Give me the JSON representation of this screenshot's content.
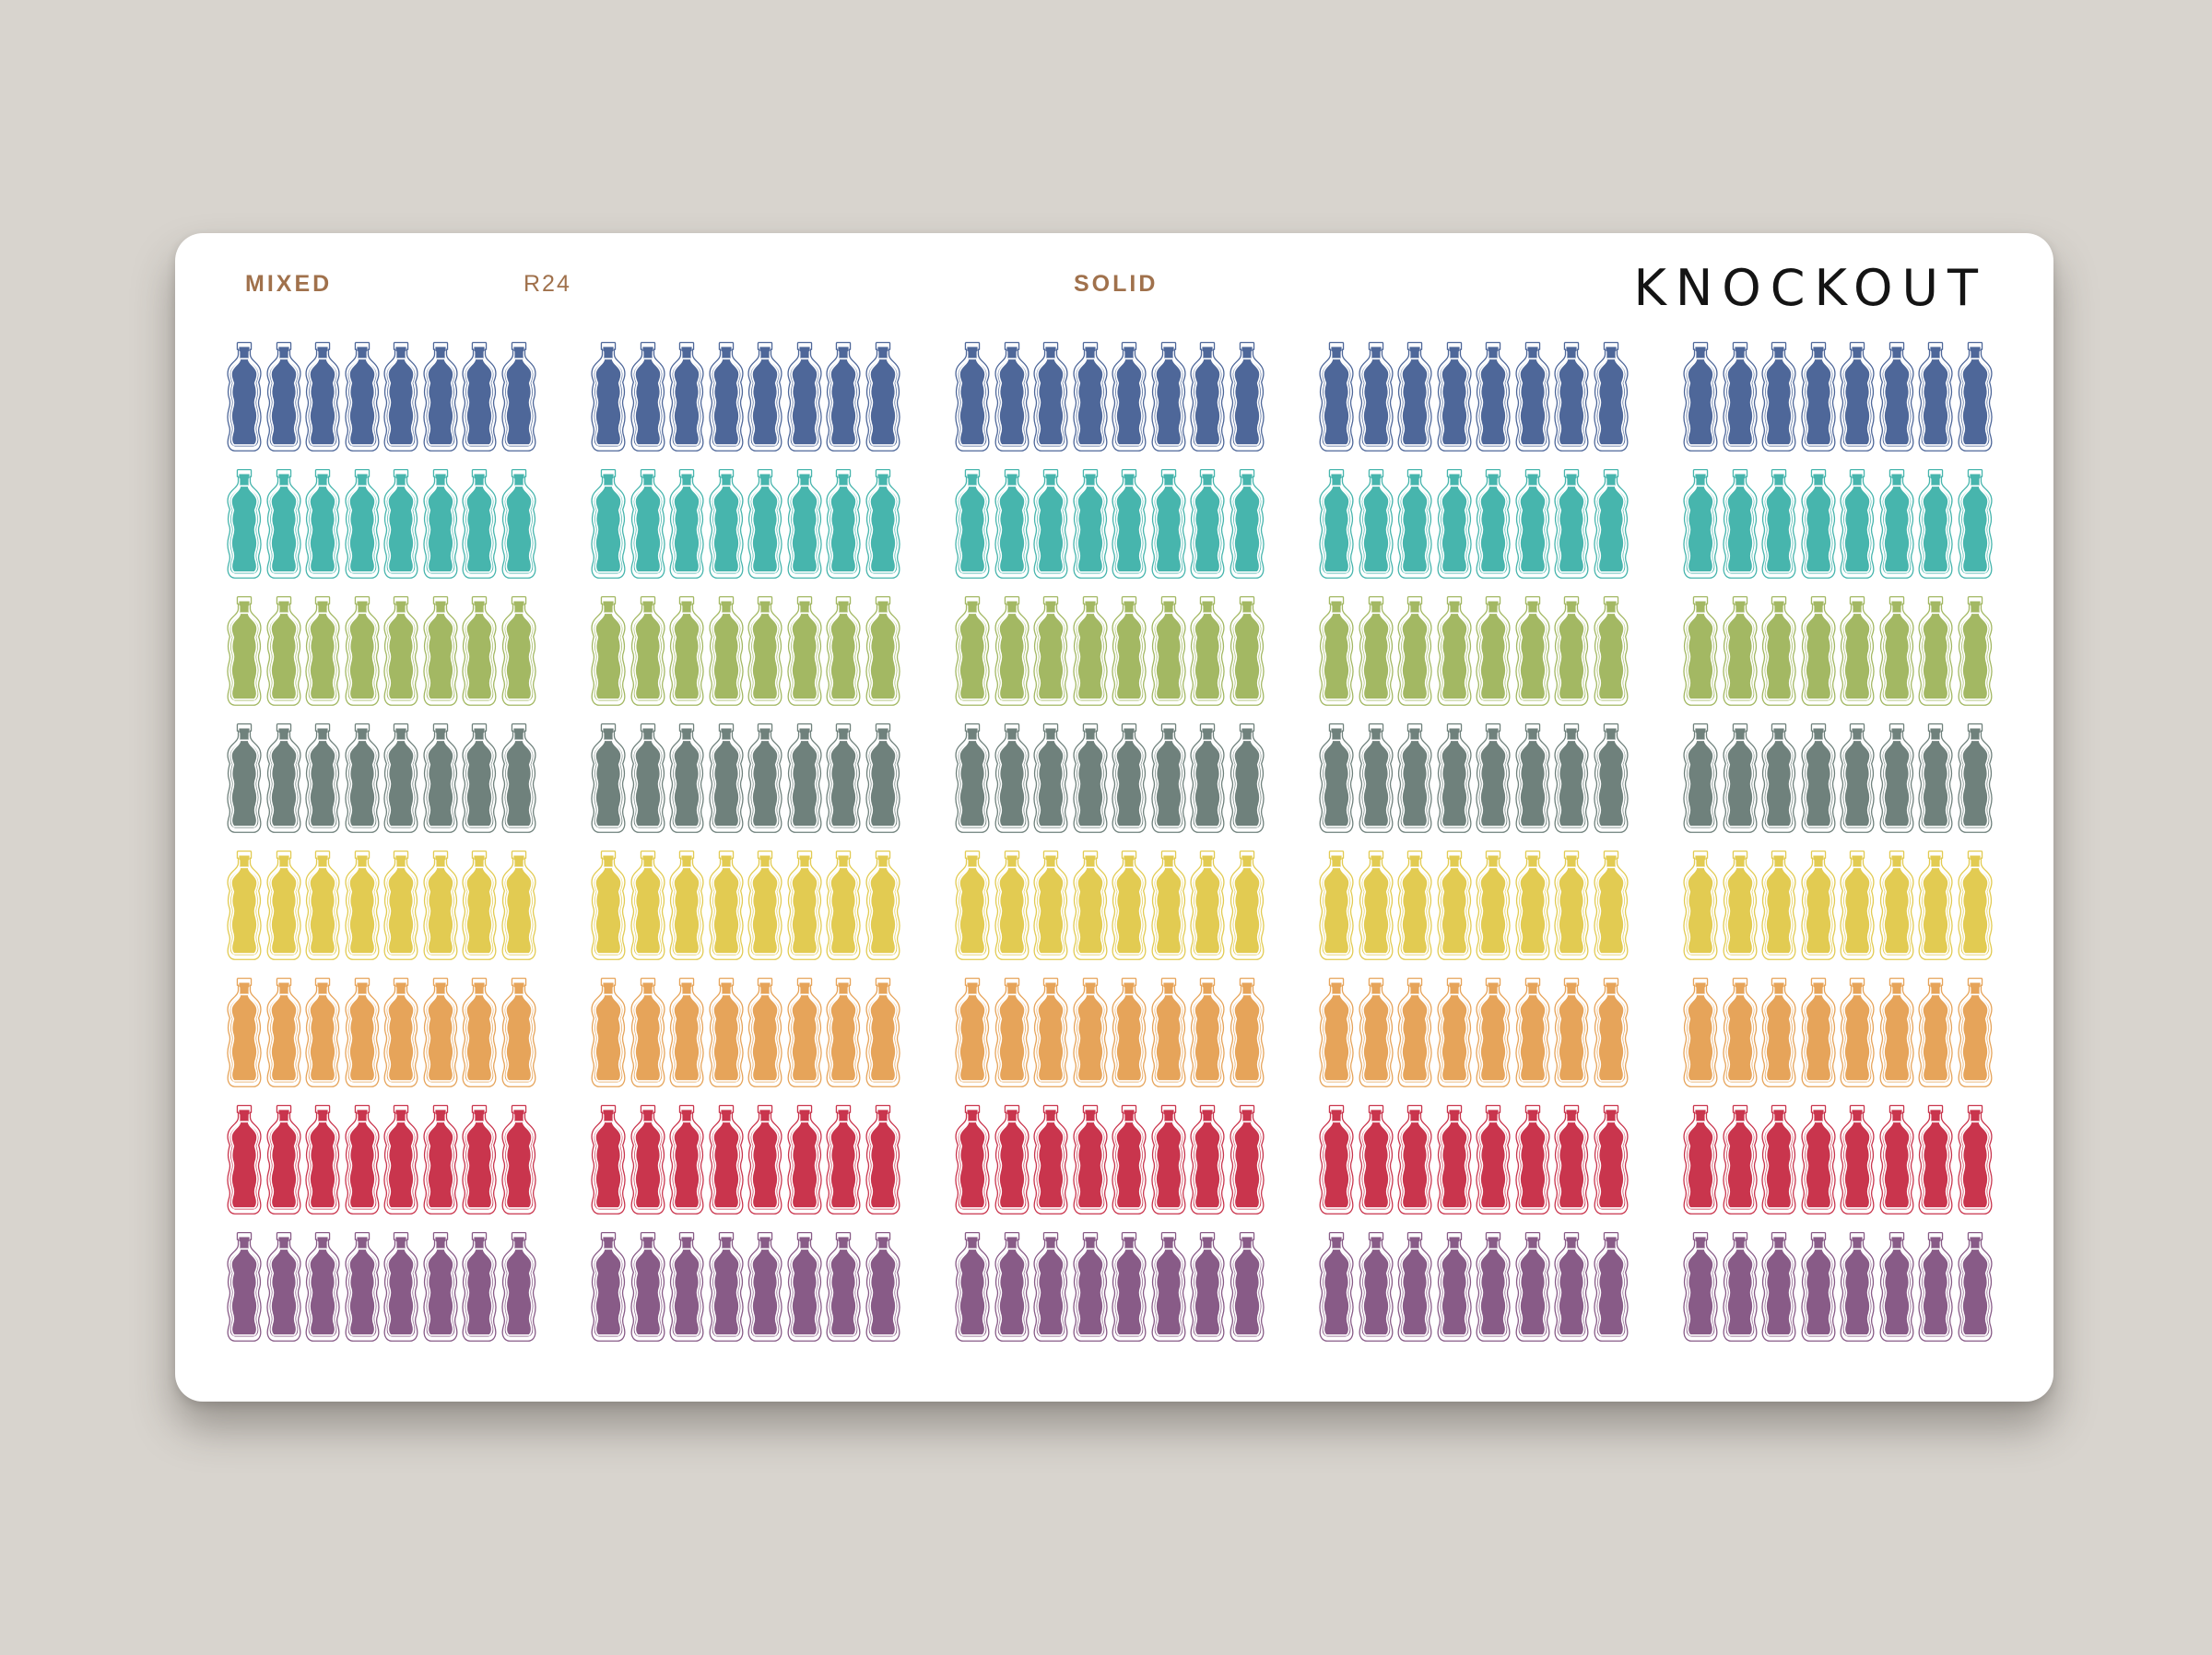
{
  "sheet": {
    "labels": {
      "mixed": "MIXED",
      "code": "R24",
      "solid": "SOLID"
    },
    "brand": "KNOCKOUT"
  },
  "stickers": {
    "icon": "water-bottle-icon",
    "blocks": 5,
    "bottles_per_strip": 8,
    "rows": [
      {
        "name": "blue",
        "color": "#4e6799"
      },
      {
        "name": "teal",
        "color": "#47b5ad"
      },
      {
        "name": "green",
        "color": "#a3b863"
      },
      {
        "name": "gray",
        "color": "#6f817c"
      },
      {
        "name": "yellow",
        "color": "#e2cb52"
      },
      {
        "name": "orange",
        "color": "#e6a45a"
      },
      {
        "name": "red",
        "color": "#c9354d"
      },
      {
        "name": "purple",
        "color": "#885b87"
      }
    ]
  }
}
